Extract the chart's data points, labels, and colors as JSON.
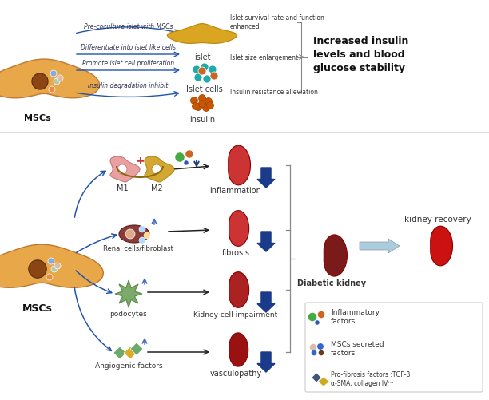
{
  "title": "",
  "bg_color": "#ffffff",
  "top_section": {
    "msc_label": "MSCs",
    "arrows": [
      "Pre-coculture islet with MSCs",
      "Differentiate into islet like cells",
      "Promote islet cell proliferation",
      "Insulin degradation inhibit"
    ],
    "right_labels": [
      "Islet survival rate and function\nenhanced",
      "Islet size enlargement",
      "Insulin resistance alleviation"
    ],
    "conclusion": "Increased insulin\nlevels and blood\nglucose stability"
  },
  "bottom_section": {
    "msc_label": "MSCs",
    "pathway_labels": [
      "M1",
      "M2",
      "Renal cells/fibroblast",
      "podocytes",
      "Angiogenic factors"
    ],
    "effect_labels": [
      "inflammation",
      "fibrosis",
      "Kidney cell impairment",
      "vasculopathy"
    ],
    "right_label": "kidney recovery",
    "diabetic_label": "Diabetic kidney",
    "legend": [
      "Inflammatory\nfactors",
      "MSCs secreted\nfactors",
      "Pro-fibrosis factors :TGF-β,\nα-SMA, collagen IV···"
    ]
  },
  "colors": {
    "msc_body": "#E8A84A",
    "arrow_blue": "#2255AA",
    "arrow_black": "#222222",
    "m1_color": "#E8A0A0",
    "m2_color": "#D4A830",
    "renal_color": "#8B3A3A",
    "podocyte_color": "#7BAA6A",
    "angio_green": "#6BAA6B",
    "angio_yellow": "#DDAA22",
    "kidney_dark": "#7B1A1A",
    "kidney_red": "#CC3333",
    "text_dark": "#111111",
    "conclusion_text": "#111111",
    "infl_green": "#44AA44",
    "infl_orange": "#CC6622",
    "msc_sec_blue": "#3355BB",
    "msc_sec_brown": "#6B3A1F",
    "profibrosis_blue": "#445577",
    "profibrosis_yellow": "#CCAA22",
    "big_arrow": "#1A3A8A",
    "bracket": "#888888"
  }
}
